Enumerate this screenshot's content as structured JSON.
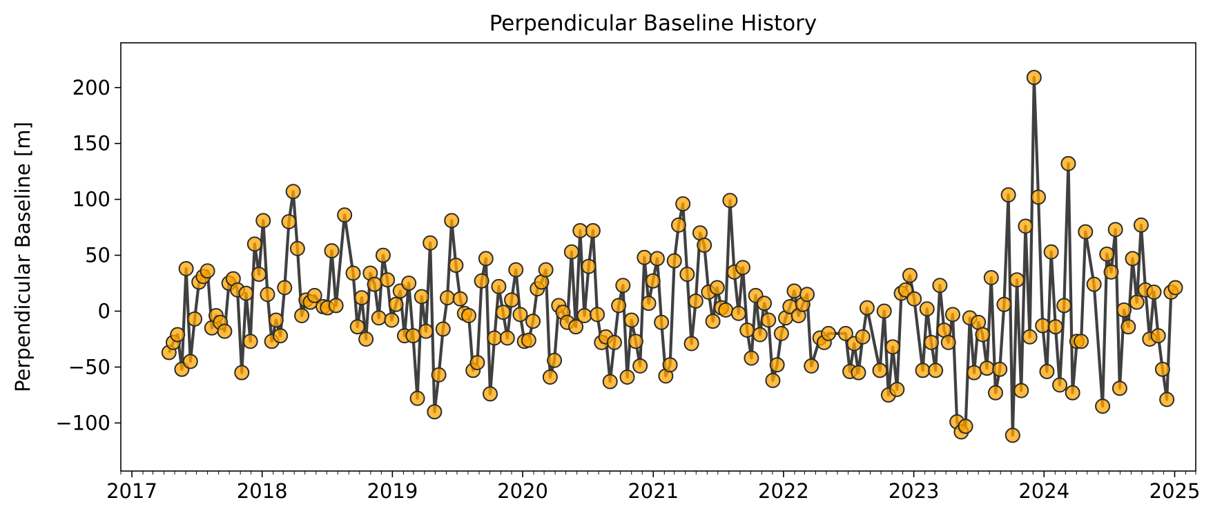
{
  "chart_data": {
    "type": "line",
    "title": "Perpendicular Baseline History",
    "xlabel": "",
    "ylabel": "Perpendicular Baseline [m]",
    "x_axis": "date",
    "xlim": [
      "2016-12-01",
      "2025-03-01"
    ],
    "ylim": [
      -143,
      240
    ],
    "x_ticks": [
      "2017",
      "2018",
      "2019",
      "2020",
      "2021",
      "2022",
      "2023",
      "2024",
      "2025"
    ],
    "y_ticks": [
      -100,
      -50,
      0,
      50,
      100,
      150,
      200
    ],
    "y_tick_labels": [
      "−100",
      "−50",
      "0",
      "50",
      "100",
      "150",
      "200"
    ],
    "grid": false,
    "legend": "none",
    "line_color": "#404040",
    "marker_color": "#FFA500",
    "marker_edge_color": "#2b2b2b",
    "series": [
      {
        "x": [
          "2017-04-15",
          "2017-04-27",
          "2017-05-09",
          "2017-05-21",
          "2017-06-02",
          "2017-06-14",
          "2017-06-26",
          "2017-07-08",
          "2017-07-20",
          "2017-08-01",
          "2017-08-13",
          "2017-08-25",
          "2017-09-06",
          "2017-09-18",
          "2017-09-30",
          "2017-10-12",
          "2017-10-24",
          "2017-11-05",
          "2017-11-17",
          "2017-11-29",
          "2017-12-11",
          "2017-12-23",
          "2018-01-04",
          "2018-01-16",
          "2018-01-28",
          "2018-02-09",
          "2018-02-21",
          "2018-03-05",
          "2018-03-17",
          "2018-03-29",
          "2018-04-10",
          "2018-04-22",
          "2018-05-04",
          "2018-05-16",
          "2018-05-28",
          "2018-06-21",
          "2018-07-03",
          "2018-07-15",
          "2018-07-27",
          "2018-08-20",
          "2018-09-13",
          "2018-09-25",
          "2018-10-07",
          "2018-10-19",
          "2018-10-31",
          "2018-11-12",
          "2018-11-24",
          "2018-12-06",
          "2018-12-18",
          "2018-12-30",
          "2019-01-11",
          "2019-01-23",
          "2019-02-04",
          "2019-02-16",
          "2019-02-28",
          "2019-03-12",
          "2019-03-24",
          "2019-04-05",
          "2019-04-17",
          "2019-04-29",
          "2019-05-11",
          "2019-05-23",
          "2019-06-04",
          "2019-06-16",
          "2019-06-28",
          "2019-07-10",
          "2019-07-22",
          "2019-08-03",
          "2019-08-15",
          "2019-08-27",
          "2019-09-08",
          "2019-09-20",
          "2019-10-02",
          "2019-10-14",
          "2019-10-26",
          "2019-11-07",
          "2019-11-19",
          "2019-12-01",
          "2019-12-13",
          "2019-12-25",
          "2020-01-06",
          "2020-01-18",
          "2020-01-30",
          "2020-02-11",
          "2020-02-23",
          "2020-03-06",
          "2020-03-18",
          "2020-03-30",
          "2020-04-11",
          "2020-04-23",
          "2020-05-05",
          "2020-05-17",
          "2020-05-29",
          "2020-06-10",
          "2020-06-22",
          "2020-07-04",
          "2020-07-16",
          "2020-07-28",
          "2020-08-09",
          "2020-08-21",
          "2020-09-02",
          "2020-09-14",
          "2020-09-26",
          "2020-10-08",
          "2020-10-20",
          "2020-11-01",
          "2020-11-13",
          "2020-11-25",
          "2020-12-07",
          "2020-12-19",
          "2020-12-31",
          "2021-01-12",
          "2021-01-24",
          "2021-02-05",
          "2021-02-17",
          "2021-03-01",
          "2021-03-13",
          "2021-03-25",
          "2021-04-06",
          "2021-04-18",
          "2021-04-30",
          "2021-05-12",
          "2021-05-24",
          "2021-06-05",
          "2021-06-17",
          "2021-06-29",
          "2021-07-11",
          "2021-07-23",
          "2021-08-04",
          "2021-08-16",
          "2021-08-28",
          "2021-09-09",
          "2021-09-21",
          "2021-10-03",
          "2021-10-15",
          "2021-10-27",
          "2021-11-08",
          "2021-11-20",
          "2021-12-02",
          "2021-12-14",
          "2021-12-26",
          "2022-01-07",
          "2022-01-19",
          "2022-01-31",
          "2022-02-12",
          "2022-02-24",
          "2022-03-08",
          "2022-03-20",
          "2022-04-13",
          "2022-04-25",
          "2022-05-07",
          "2022-06-24",
          "2022-07-06",
          "2022-07-18",
          "2022-07-30",
          "2022-08-11",
          "2022-08-23",
          "2022-09-28",
          "2022-10-10",
          "2022-10-22",
          "2022-11-03",
          "2022-11-15",
          "2022-11-27",
          "2022-12-09",
          "2022-12-21",
          "2023-01-02",
          "2023-01-26",
          "2023-02-07",
          "2023-02-19",
          "2023-03-03",
          "2023-03-15",
          "2023-03-27",
          "2023-04-08",
          "2023-04-20",
          "2023-05-02",
          "2023-05-14",
          "2023-05-26",
          "2023-06-07",
          "2023-06-19",
          "2023-07-01",
          "2023-07-13",
          "2023-07-25",
          "2023-08-06",
          "2023-08-18",
          "2023-08-30",
          "2023-09-11",
          "2023-09-23",
          "2023-10-05",
          "2023-10-17",
          "2023-10-29",
          "2023-11-10",
          "2023-11-22",
          "2023-12-04",
          "2023-12-16",
          "2023-12-28",
          "2024-01-09",
          "2024-01-21",
          "2024-02-02",
          "2024-02-14",
          "2024-02-26",
          "2024-03-09",
          "2024-03-21",
          "2024-04-02",
          "2024-04-14",
          "2024-04-26",
          "2024-05-20",
          "2024-06-13",
          "2024-06-25",
          "2024-07-07",
          "2024-07-19",
          "2024-07-31",
          "2024-08-12",
          "2024-08-24",
          "2024-09-05",
          "2024-09-17",
          "2024-09-29",
          "2024-10-11",
          "2024-10-23",
          "2024-11-04",
          "2024-11-16",
          "2024-11-28",
          "2024-12-10",
          "2024-12-22",
          "2025-01-03"
        ],
        "y": [
          -37,
          -28,
          -21,
          -52,
          38,
          -45,
          -7,
          26,
          31,
          36,
          -15,
          -4,
          -10,
          -18,
          25,
          29,
          19,
          -55,
          16,
          -27,
          60,
          33,
          81,
          15,
          -27,
          -8,
          -22,
          21,
          80,
          107,
          56,
          -4,
          10,
          8,
          14,
          4,
          3,
          54,
          5,
          86,
          34,
          -14,
          12,
          -25,
          34,
          24,
          -6,
          50,
          28,
          -8,
          6,
          18,
          -22,
          25,
          -22,
          -78,
          13,
          -18,
          61,
          -90,
          -57,
          -16,
          12,
          81,
          41,
          11,
          -2,
          -4,
          -53,
          -46,
          27,
          47,
          -74,
          -24,
          22,
          -1,
          -24,
          10,
          37,
          -3,
          -27,
          -26,
          -9,
          20,
          26,
          37,
          -59,
          -44,
          5,
          -1,
          -10,
          53,
          -14,
          72,
          -4,
          40,
          72,
          -3,
          -28,
          -23,
          -63,
          -28,
          5,
          23,
          -59,
          -8,
          -27,
          -49,
          48,
          7,
          27,
          47,
          -10,
          -58,
          -48,
          45,
          77,
          96,
          33,
          -29,
          9,
          70,
          59,
          17,
          -9,
          21,
          3,
          1,
          99,
          35,
          -2,
          39,
          -17,
          -42,
          14,
          -21,
          7,
          -8,
          -62,
          -48,
          -20,
          -6,
          4,
          18,
          -4,
          6,
          15,
          -49,
          -24,
          -28,
          -20,
          -20,
          -54,
          -29,
          -55,
          -23,
          3,
          -53,
          0,
          -75,
          -32,
          -70,
          16,
          19,
          32,
          11,
          -53,
          2,
          -28,
          -53,
          23,
          -17,
          -28,
          -3,
          -99,
          -108,
          -103,
          -6,
          -55,
          -10,
          -21,
          -51,
          30,
          -73,
          -52,
          6,
          104,
          -111,
          28,
          -71,
          76,
          -23,
          209,
          102,
          -13,
          -54,
          53,
          -14,
          -66,
          5,
          132,
          -73,
          -27,
          -27,
          71,
          24,
          -85,
          51,
          35,
          73,
          -69,
          1,
          -14,
          47,
          8,
          77,
          19,
          -25,
          17,
          -22,
          -52,
          -79,
          17,
          21
        ]
      }
    ]
  }
}
